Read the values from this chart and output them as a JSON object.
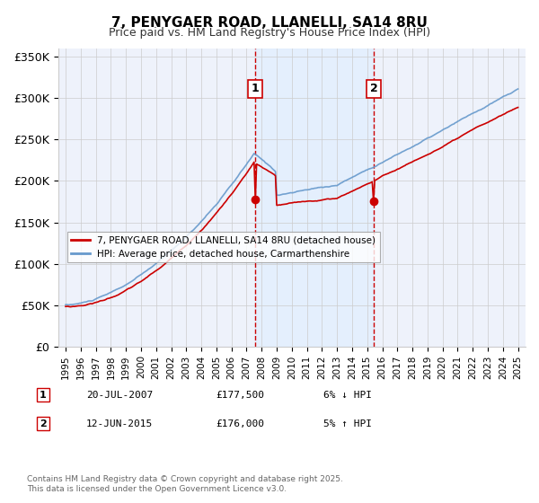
{
  "title": "7, PENYGAER ROAD, LLANELLI, SA14 8RU",
  "subtitle": "Price paid vs. HM Land Registry's House Price Index (HPI)",
  "ylim": [
    0,
    360000
  ],
  "yticks": [
    0,
    50000,
    100000,
    150000,
    200000,
    250000,
    300000,
    350000
  ],
  "ytick_labels": [
    "£0",
    "£50K",
    "£100K",
    "£150K",
    "£200K",
    "£250K",
    "£300K",
    "£350K"
  ],
  "background_color": "#ffffff",
  "plot_bg_color": "#eef2fb",
  "grid_color": "#cccccc",
  "legend1_label": "7, PENYGAER ROAD, LLANELLI, SA14 8RU (detached house)",
  "legend2_label": "HPI: Average price, detached house, Carmarthenshire",
  "line1_color": "#cc0000",
  "line2_color": "#6699cc",
  "vline_color": "#cc0000",
  "vline_style": "--",
  "transaction1_date_num": 2007.55,
  "transaction2_date_num": 2015.45,
  "transaction1_label": "1",
  "transaction2_label": "2",
  "footer": "Contains HM Land Registry data © Crown copyright and database right 2025.\nThis data is licensed under the Open Government Licence v3.0.",
  "table_data": [
    [
      "1",
      "20-JUL-2007",
      "£177,500",
      "6% ↓ HPI"
    ],
    [
      "2",
      "12-JUN-2015",
      "£176,000",
      "5% ↑ HPI"
    ]
  ]
}
